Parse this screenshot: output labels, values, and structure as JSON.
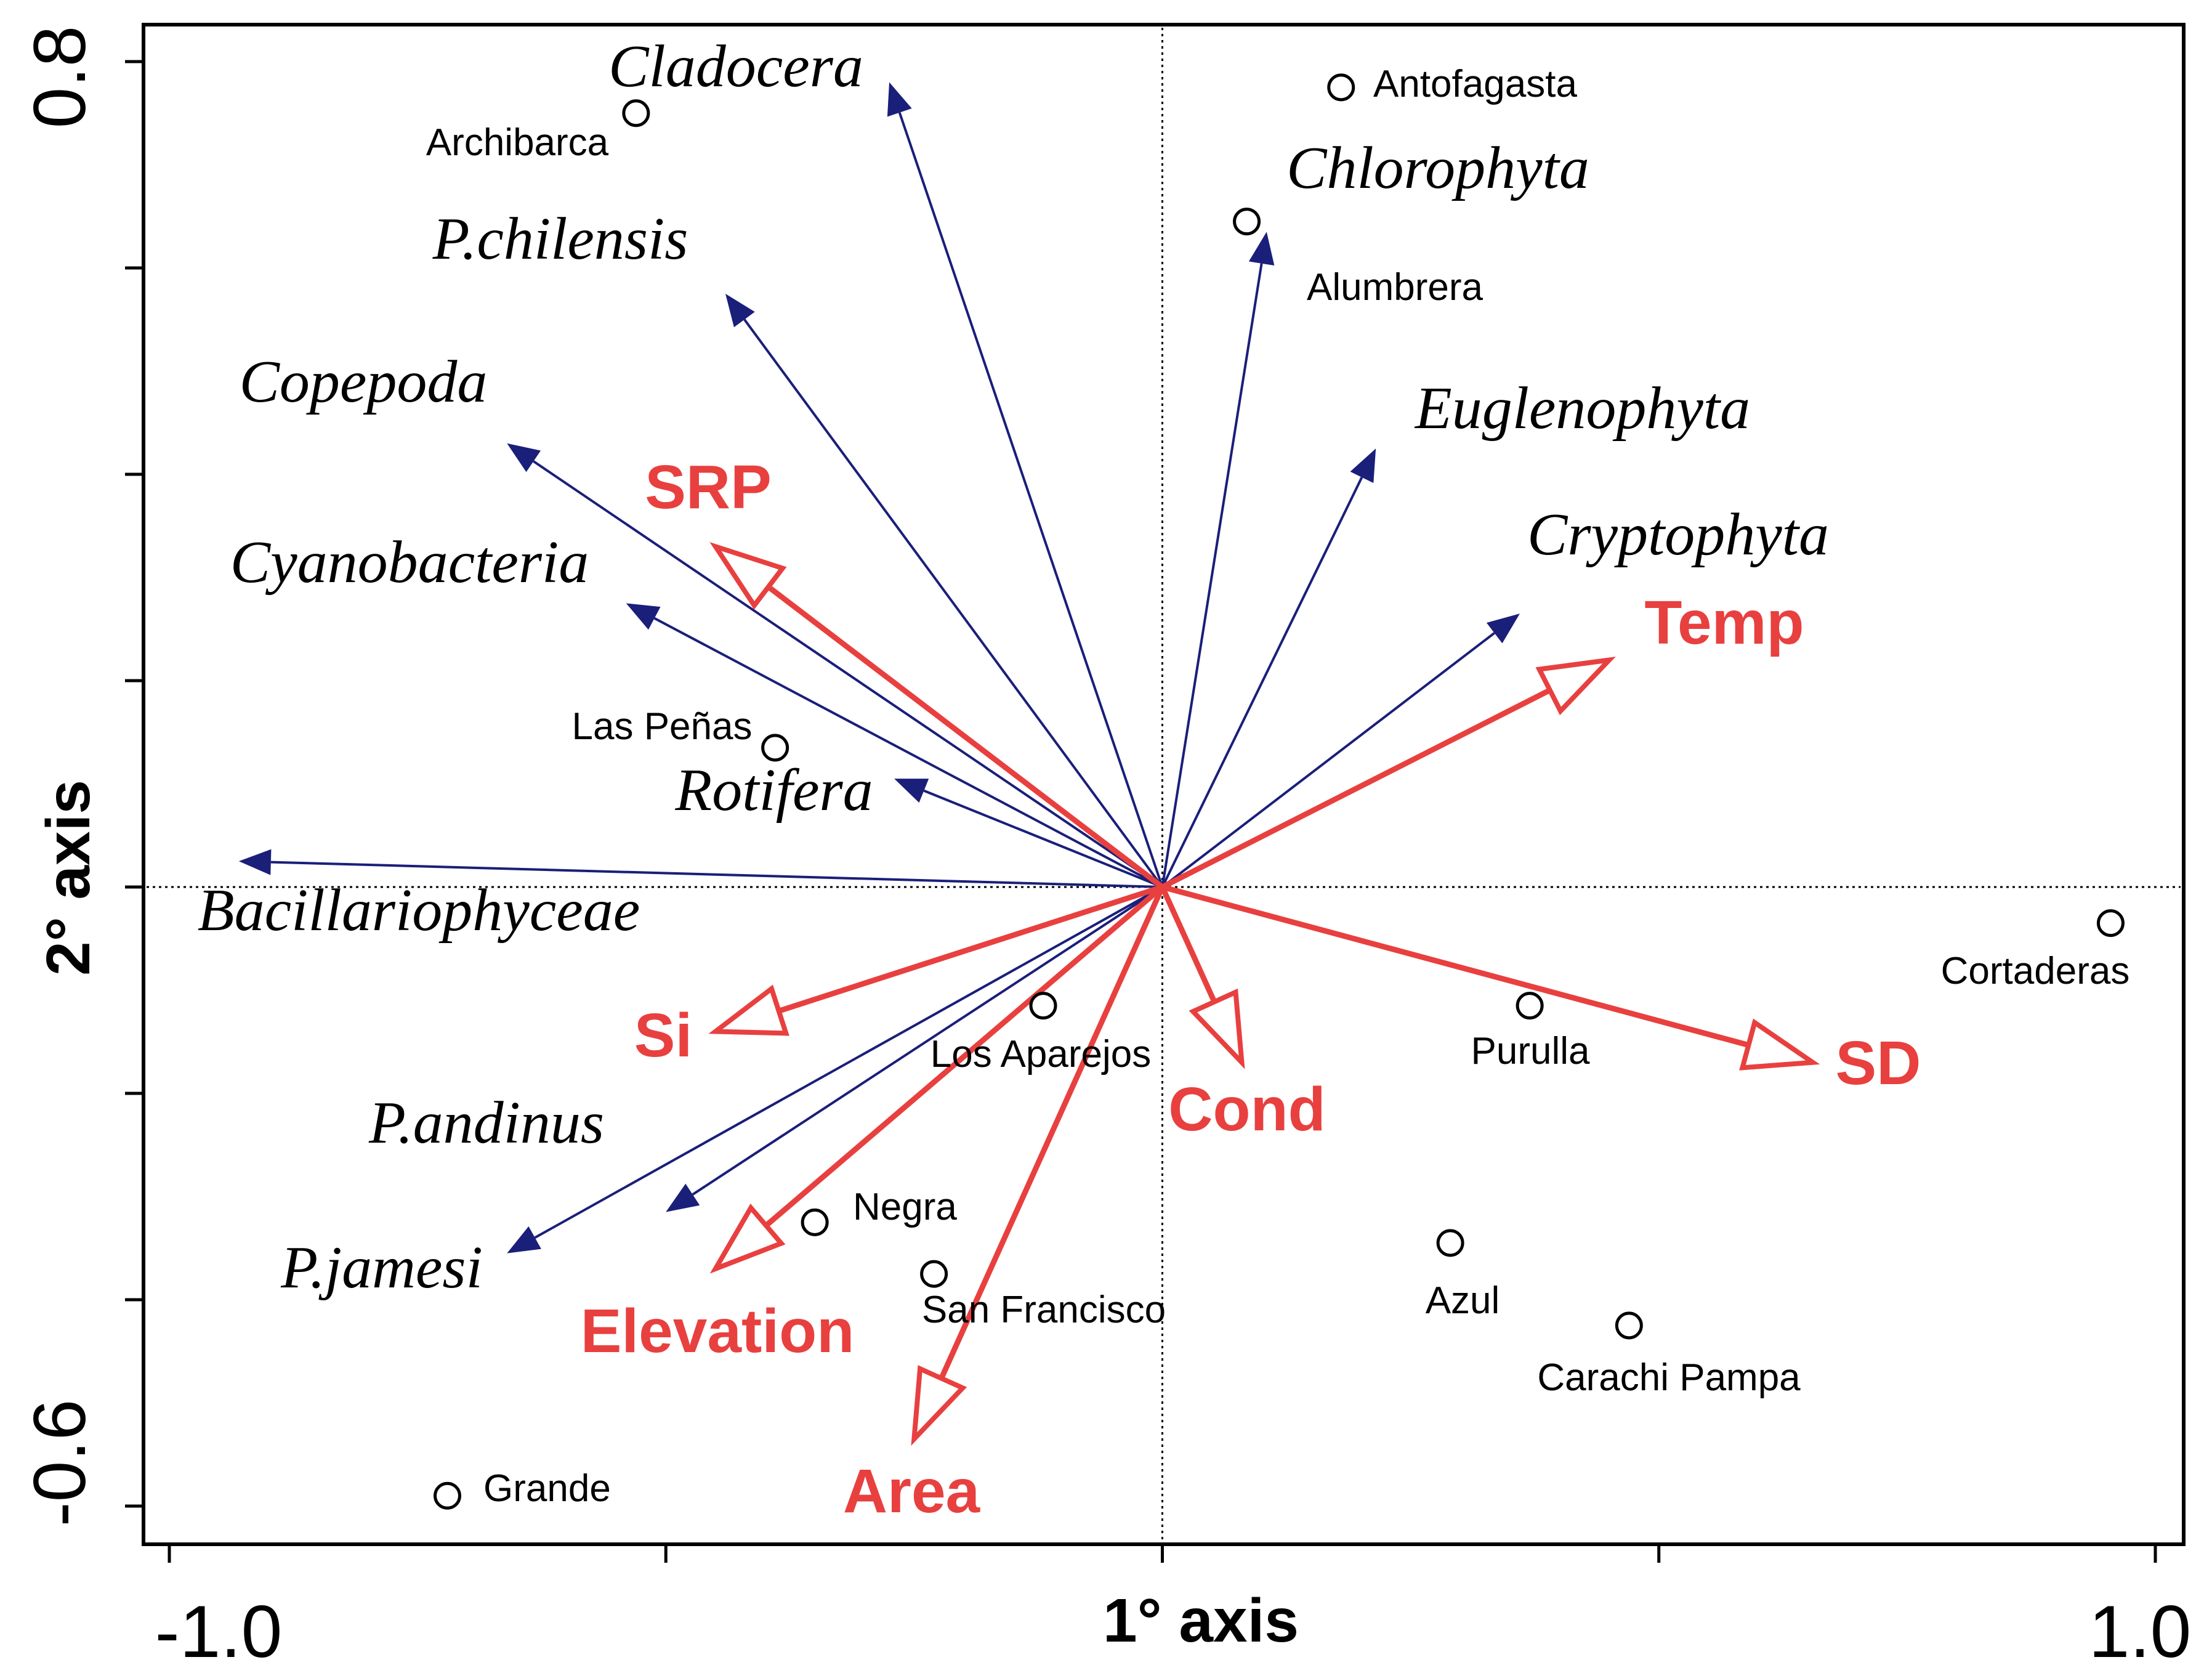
{
  "chart_data": {
    "type": "scatter",
    "subtype": "ordination-biplot",
    "title": "",
    "xlabel": "1° axis",
    "ylabel": "2° axis",
    "xlim": [
      -1.0,
      1.0
    ],
    "ylim": [
      -0.6,
      0.8
    ],
    "x_tick_labels": [
      "-1.0",
      "1.0"
    ],
    "y_tick_labels": [
      "0.8",
      "-0.6"
    ],
    "x_ticks": [
      -1.0,
      -0.5,
      0.0,
      0.5,
      1.0
    ],
    "y_ticks": [
      -0.6,
      -0.4,
      -0.2,
      0.0,
      0.2,
      0.4,
      0.6,
      0.8
    ],
    "zero_lines": true,
    "colors": {
      "species_arrow": "#1a1f7a",
      "env_arrow": "#e8403f",
      "site_marker": "#000000"
    },
    "species_arrows": [
      {
        "name": "Cladocera",
        "x": -0.275,
        "y": 0.78
      },
      {
        "name": "P.chilensis",
        "x": -0.44,
        "y": 0.575
      },
      {
        "name": "Copepoda",
        "x": -0.66,
        "y": 0.43
      },
      {
        "name": "Cyanobacteria",
        "x": -0.54,
        "y": 0.275
      },
      {
        "name": "Rotifera",
        "x": -0.27,
        "y": 0.105
      },
      {
        "name": "Bacillariophyceae",
        "x": -0.93,
        "y": 0.025
      },
      {
        "name": "P.andinus",
        "x": -0.5,
        "y": -0.315
      },
      {
        "name": "P.jamesi",
        "x": -0.66,
        "y": -0.355
      },
      {
        "name": "Chlorophyta",
        "x": 0.105,
        "y": 0.635
      },
      {
        "name": "Euglenophyta",
        "x": 0.215,
        "y": 0.425
      },
      {
        "name": "Cryptophyta",
        "x": 0.36,
        "y": 0.265
      }
    ],
    "environmental_arrows": [
      {
        "name": "SRP",
        "x": -0.45,
        "y": 0.33
      },
      {
        "name": "Temp",
        "x": 0.45,
        "y": 0.22
      },
      {
        "name": "Si",
        "x": -0.45,
        "y": -0.14
      },
      {
        "name": "Cond",
        "x": 0.08,
        "y": -0.17
      },
      {
        "name": "SD",
        "x": 0.655,
        "y": -0.17
      },
      {
        "name": "Elevation",
        "x": -0.45,
        "y": -0.37
      },
      {
        "name": "Area",
        "x": -0.25,
        "y": -0.535
      }
    ],
    "sites": [
      {
        "name": "Antofagasta",
        "x": 0.18,
        "y": 0.775
      },
      {
        "name": "Archibarca",
        "x": -0.53,
        "y": 0.75
      },
      {
        "name": "Alumbrera",
        "x": 0.085,
        "y": 0.645
      },
      {
        "name": "Las Peñas",
        "x": -0.39,
        "y": 0.135
      },
      {
        "name": "Cortaderas",
        "x": 0.955,
        "y": -0.035
      },
      {
        "name": "Los Aparejos",
        "x": -0.12,
        "y": -0.115
      },
      {
        "name": "Purulla",
        "x": 0.37,
        "y": -0.115
      },
      {
        "name": "Negra",
        "x": -0.35,
        "y": -0.325
      },
      {
        "name": "San Francisco",
        "x": -0.23,
        "y": -0.375
      },
      {
        "name": "Azul",
        "x": 0.29,
        "y": -0.345
      },
      {
        "name": "Carachi Pampa",
        "x": 0.47,
        "y": -0.425
      },
      {
        "name": "Grande",
        "x": -0.72,
        "y": -0.59
      }
    ]
  }
}
